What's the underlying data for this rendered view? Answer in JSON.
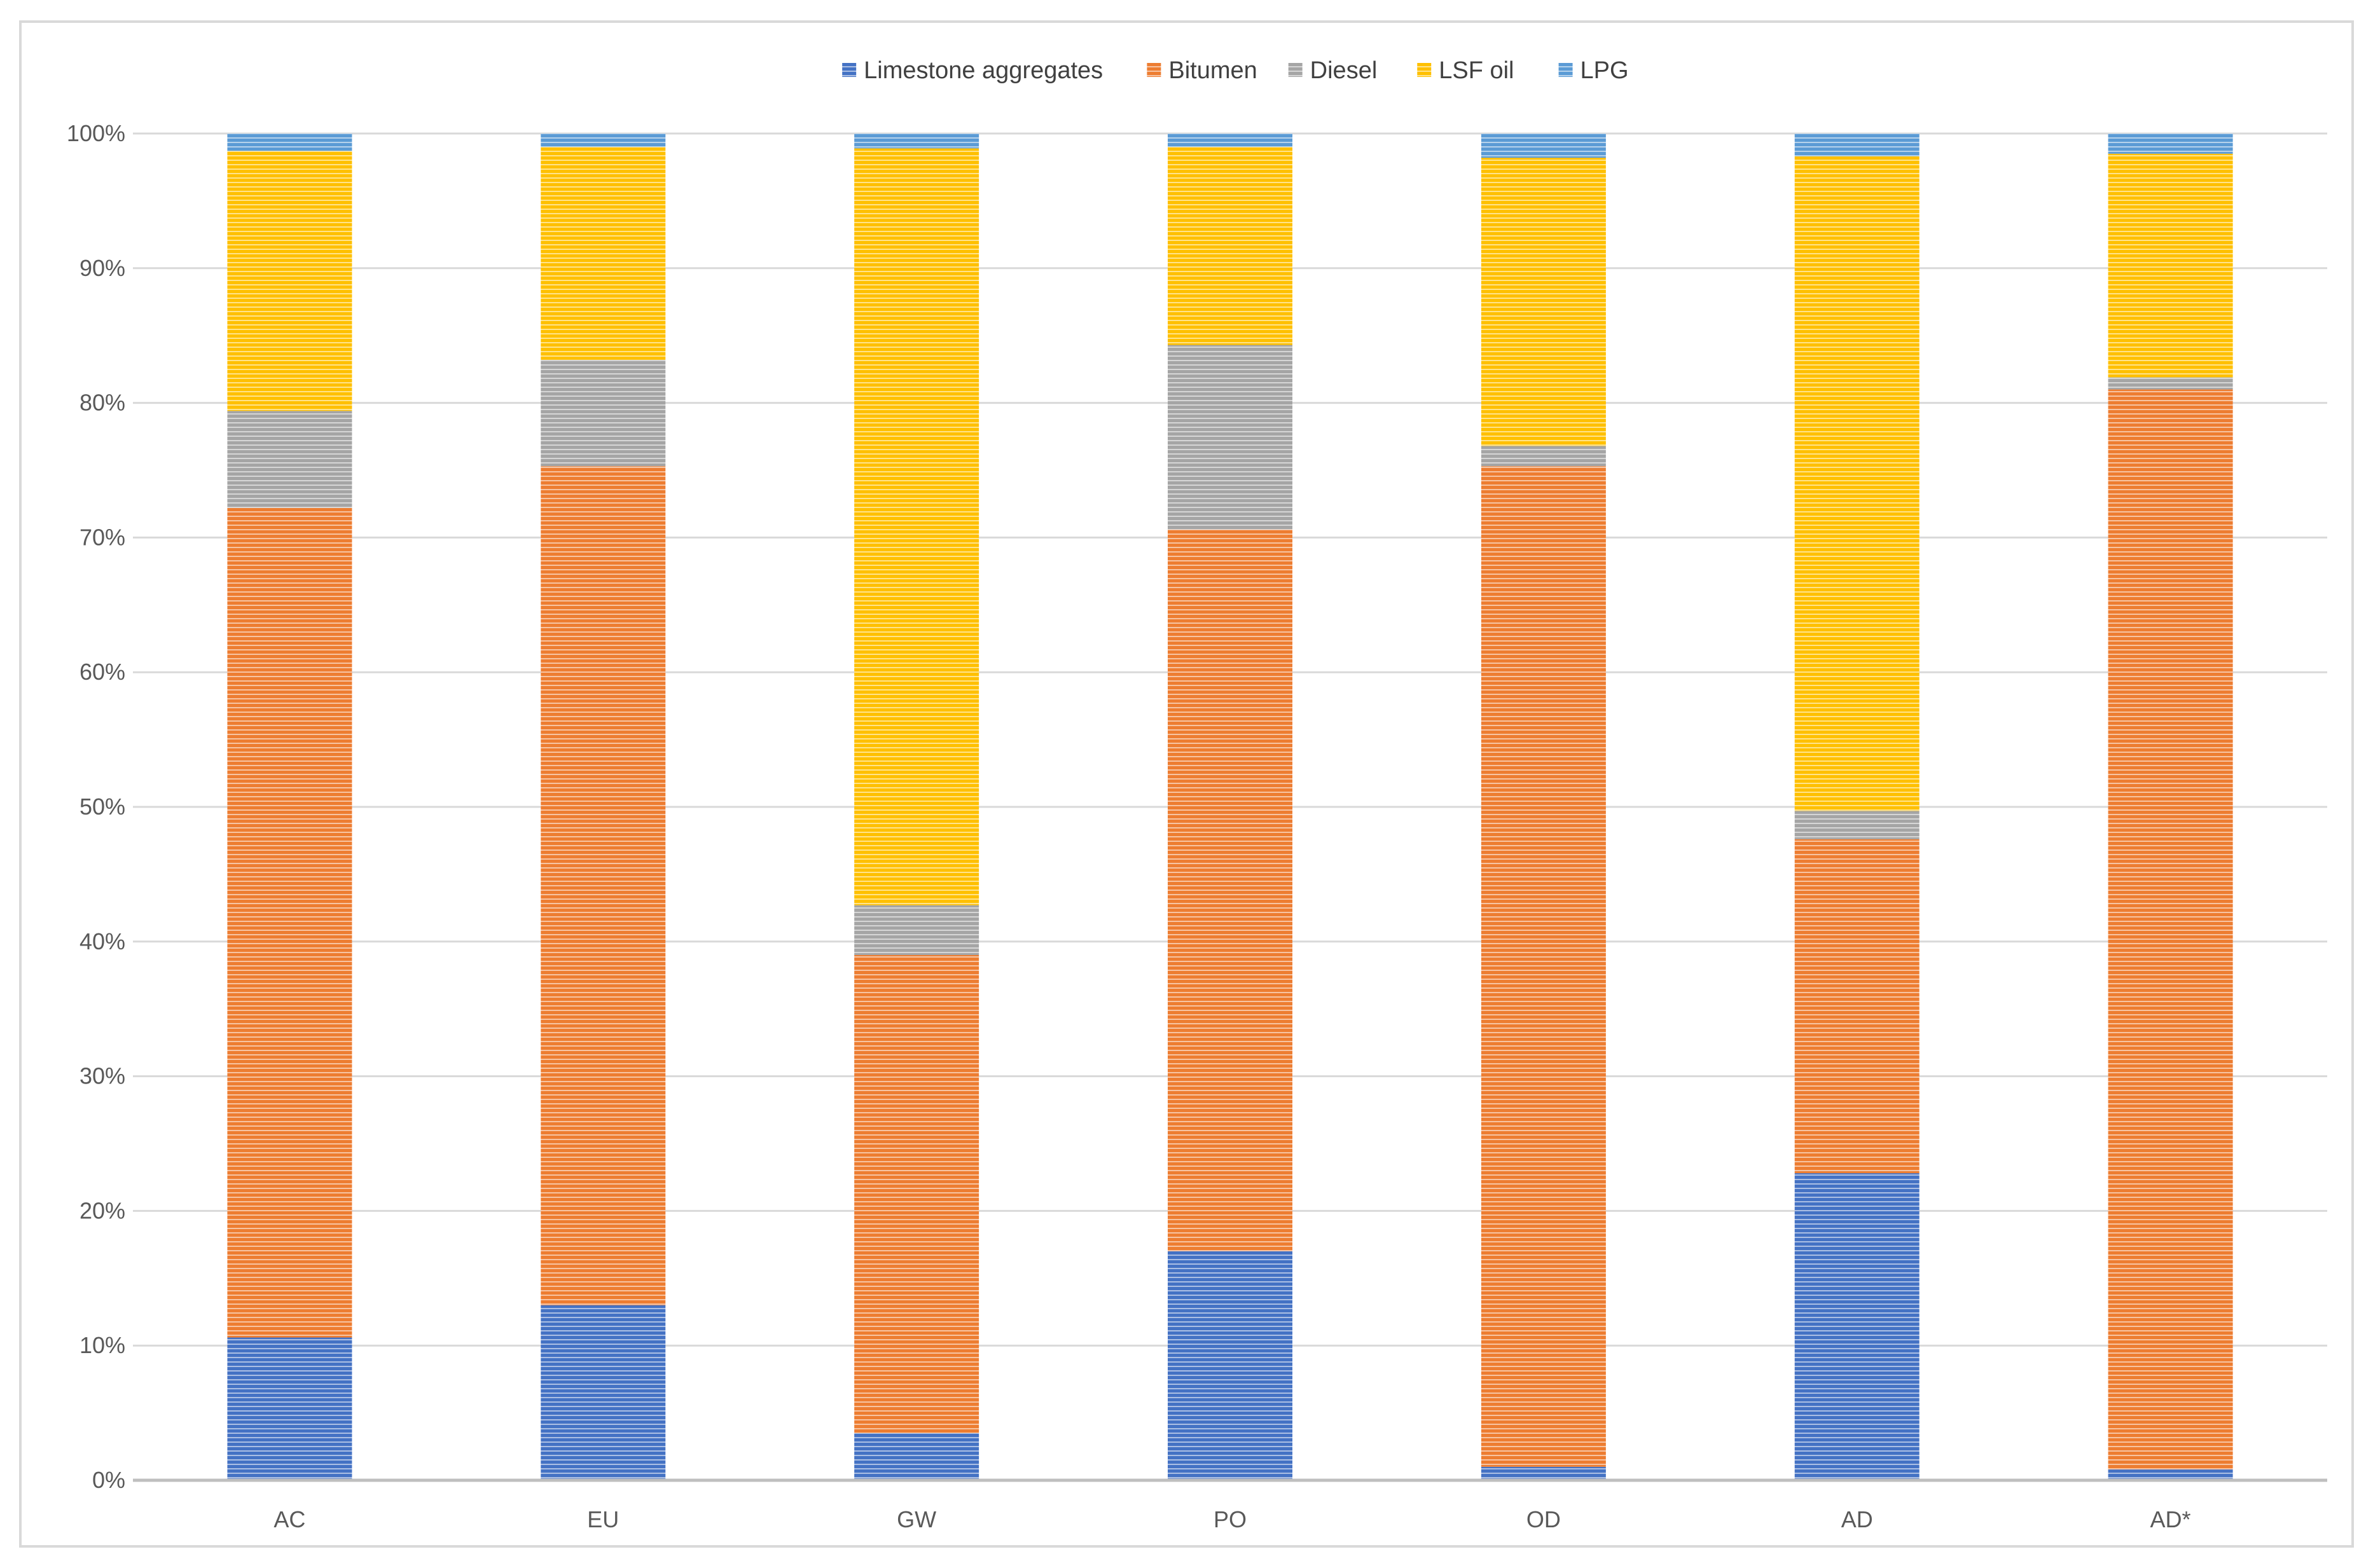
{
  "chart_data": {
    "type": "bar",
    "stacked": true,
    "percent": true,
    "title": "",
    "xlabel": "",
    "ylabel": "",
    "ylim": [
      0,
      100
    ],
    "yticks": [
      "0%",
      "10%",
      "20%",
      "30%",
      "40%",
      "50%",
      "60%",
      "70%",
      "80%",
      "90%",
      "100%"
    ],
    "legend_position": "top",
    "grid": true,
    "categories": [
      "AC",
      "EU",
      "GW",
      "PO",
      "OD",
      "AD",
      "AD*"
    ],
    "series": [
      {
        "name": "Limestone aggregates",
        "color": "#4472c4",
        "values": [
          10.6,
          13.0,
          3.5,
          17.0,
          1.0,
          22.8,
          0.8
        ]
      },
      {
        "name": "Bitumen",
        "color": "#ed7d31",
        "values": [
          61.6,
          62.3,
          35.5,
          53.6,
          74.3,
          24.8,
          80.2
        ]
      },
      {
        "name": "Diesel",
        "color": "#a5a5a5",
        "values": [
          7.2,
          7.9,
          3.7,
          13.7,
          1.5,
          2.1,
          0.9
        ]
      },
      {
        "name": "LSF oil",
        "color": "#ffc000",
        "values": [
          19.3,
          15.8,
          56.2,
          14.7,
          21.4,
          48.6,
          16.6
        ]
      },
      {
        "name": "LPG",
        "color": "#5b9bd5",
        "values": [
          1.3,
          1.0,
          1.1,
          1.0,
          1.8,
          1.7,
          1.5
        ]
      }
    ]
  }
}
